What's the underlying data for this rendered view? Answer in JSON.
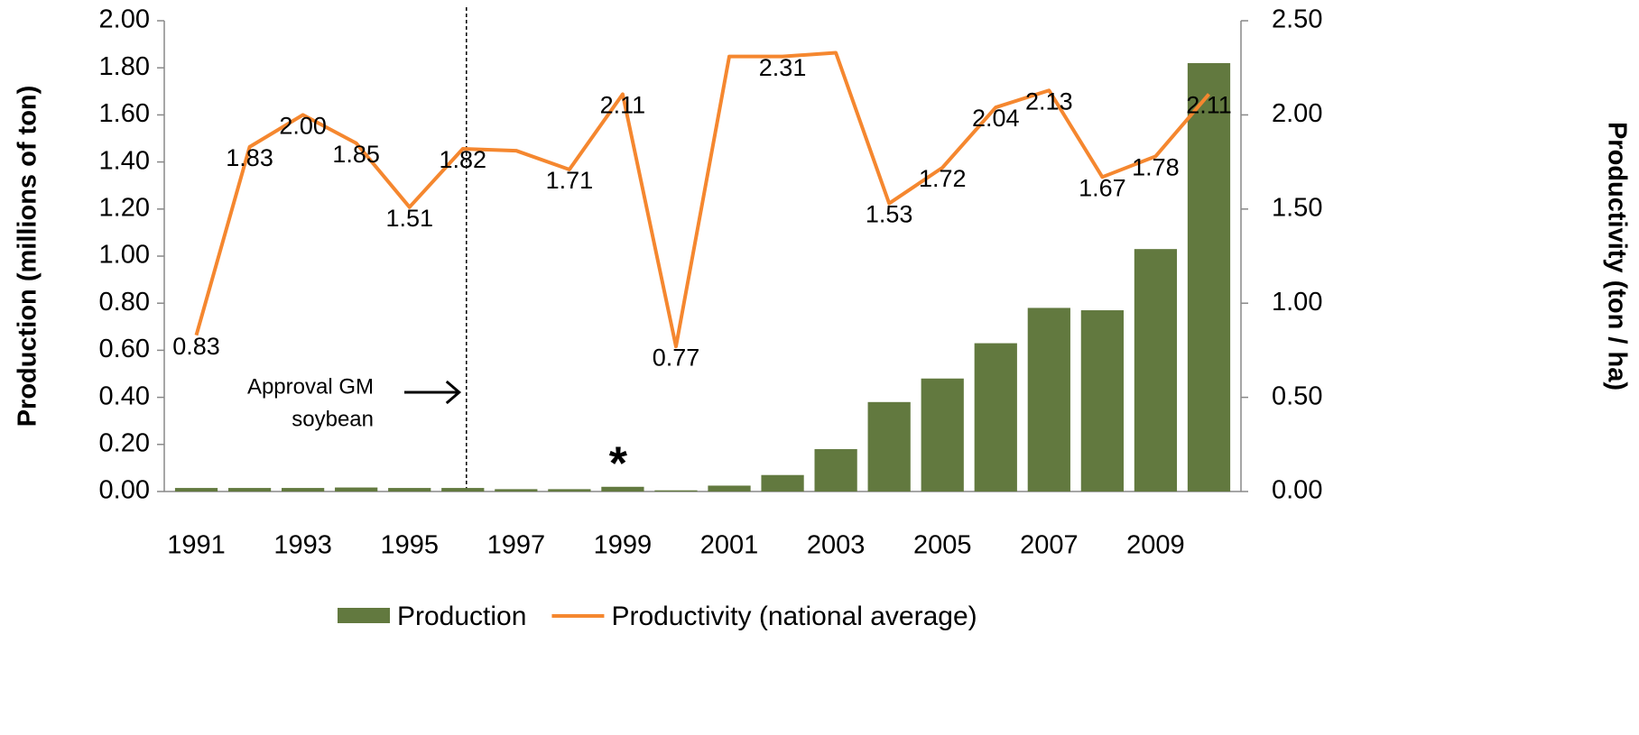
{
  "chart_data": {
    "type": "bar_line",
    "categories": [
      "1991",
      null,
      "1993",
      null,
      "1995",
      null,
      "1997",
      null,
      "1999",
      null,
      "2001",
      null,
      "2003",
      null,
      "2005",
      null,
      "2007",
      null,
      "2009",
      null
    ],
    "series": [
      {
        "name": "Production",
        "type": "bar",
        "color": "#62793f",
        "values": [
          0.015,
          0.015,
          0.015,
          0.017,
          0.015,
          0.015,
          0.01,
          0.01,
          0.02,
          0.005,
          0.025,
          0.07,
          0.18,
          0.38,
          0.48,
          0.63,
          0.78,
          0.77,
          1.03,
          1.82
        ]
      },
      {
        "name": "Productivity (national average)",
        "type": "line",
        "axis": "y2",
        "color": "#f5872f",
        "values": [
          0.83,
          1.83,
          2.0,
          1.85,
          1.51,
          1.82,
          1.81,
          1.71,
          2.11,
          0.77,
          2.31,
          2.31,
          2.33,
          1.53,
          1.72,
          2.04,
          2.13,
          1.67,
          1.78,
          2.11
        ],
        "value_labels": [
          "0.83",
          "1.83",
          "2.00",
          "1.85",
          "1.51",
          "1.82",
          null,
          "1.71",
          "2.11",
          "0.77",
          null,
          "2.31",
          null,
          "1.53",
          "1.72",
          "2.04",
          "2.13",
          "1.67",
          "1.78",
          "2.11"
        ]
      }
    ],
    "ylabel": "Production (millions of ton)",
    "y2label": "Productivity (ton / ha)",
    "ylim": [
      0,
      2
    ],
    "yticks": [
      {
        "value": 0,
        "label": "0.00"
      },
      {
        "value": 0.2,
        "label": "0.20"
      },
      {
        "value": 0.4,
        "label": "0.40"
      },
      {
        "value": 0.6,
        "label": "0.60"
      },
      {
        "value": 0.8,
        "label": "0.80"
      },
      {
        "value": 1,
        "label": "1.00"
      },
      {
        "value": 1.2,
        "label": "1.20"
      },
      {
        "value": 1.4,
        "label": "1.40"
      },
      {
        "value": 1.6,
        "label": "1.60"
      },
      {
        "value": 1.8,
        "label": "1.80"
      },
      {
        "value": 2,
        "label": "2.00"
      }
    ],
    "y2lim": [
      0,
      2.5
    ],
    "y2ticks": [
      {
        "value": 0,
        "label": "0.00"
      },
      {
        "value": 0.5,
        "label": "0.50"
      },
      {
        "value": 1,
        "label": "1.00"
      },
      {
        "value": 1.5,
        "label": "1.50"
      },
      {
        "value": 2,
        "label": "2.00"
      },
      {
        "value": 2.5,
        "label": "2.50"
      }
    ],
    "annotations": [
      {
        "lines": [
          "Approval GM",
          "soybean"
        ]
      },
      {
        "text": "*"
      }
    ],
    "grid": false,
    "legend": "bottom"
  }
}
